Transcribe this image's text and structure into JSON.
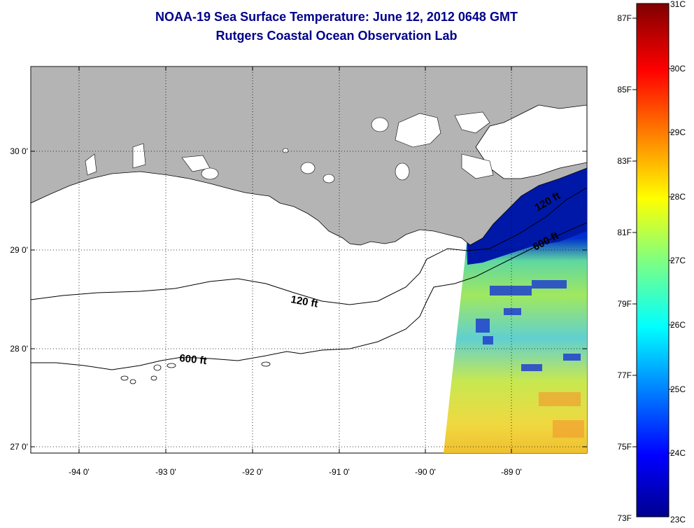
{
  "title_line1": "NOAA-19 Sea Surface Temperature:  June 12, 2012 0648 GMT",
  "title_line2": "Rutgers Coastal Ocean Observation Lab",
  "lat_labels": [
    "30 0'",
    "29 0'",
    "28 0'",
    "27 0'"
  ],
  "lon_labels": [
    "-94 0'",
    "-93 0'",
    "-92 0'",
    "-91 0'",
    "-90 0'",
    "-89 0'"
  ],
  "contour_labels": {
    "c120_west": "120 ft",
    "c600_west": "600 ft",
    "c120_east": "120 ft",
    "c600_east": "600 ft"
  },
  "colorbar_f": [
    "87F",
    "85F",
    "83F",
    "81F",
    "79F",
    "77F",
    "75F",
    "73F"
  ],
  "colorbar_c": [
    "31C",
    "30C",
    "29C",
    "28C",
    "27C",
    "26C",
    "25C",
    "24C",
    "23C"
  ],
  "colors": {
    "land": "#b4b4b4",
    "title": "#00008b"
  }
}
